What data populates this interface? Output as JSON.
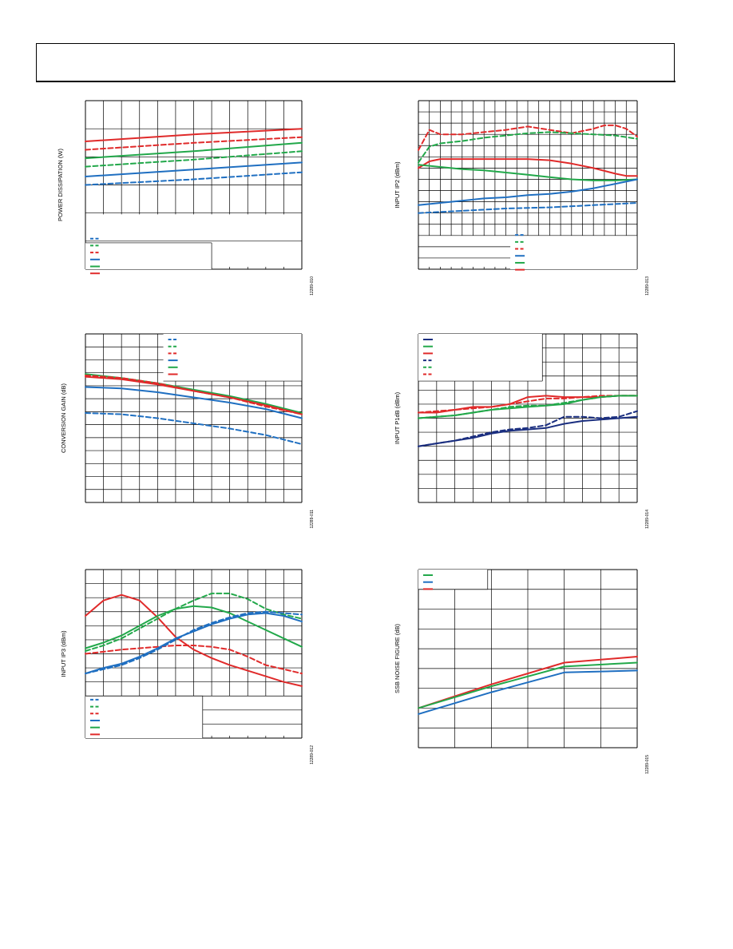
{
  "page": {
    "header_title": ""
  },
  "charts": [
    {
      "id": "power",
      "ylabel": "POWER DISSIPATION (W)",
      "fig": "12289-010",
      "xlim": [
        0,
        12
      ],
      "ylim": [
        0,
        6
      ],
      "xdiv": 12,
      "ydiv": 6,
      "grid_region": [
        0,
        1,
        1.95,
        6
      ],
      "legend": {
        "position": "bottom-left",
        "box_right_x": 7,
        "box_top_y": 0.94,
        "entries": [
          {
            "color": "#1f6fc1",
            "dash": true
          },
          {
            "color": "#22a84a",
            "dash": true
          },
          {
            "color": "#e02a2a",
            "dash": true
          },
          {
            "color": "#1f6fc1",
            "dash": false
          },
          {
            "color": "#22a84a",
            "dash": false
          },
          {
            "color": "#e02a2a",
            "dash": false
          }
        ]
      },
      "series": [
        {
          "color": "#e02a2a",
          "dash": false,
          "x": [
            0,
            6,
            12
          ],
          "y": [
            4.55,
            4.8,
            5.0
          ]
        },
        {
          "color": "#e02a2a",
          "dash": true,
          "x": [
            0,
            6,
            12
          ],
          "y": [
            4.25,
            4.5,
            4.7
          ]
        },
        {
          "color": "#22a84a",
          "dash": false,
          "x": [
            0,
            6,
            12
          ],
          "y": [
            3.95,
            4.2,
            4.5
          ]
        },
        {
          "color": "#22a84a",
          "dash": true,
          "x": [
            0,
            6,
            12
          ],
          "y": [
            3.65,
            3.9,
            4.2
          ]
        },
        {
          "color": "#1f6fc1",
          "dash": false,
          "x": [
            0,
            6,
            12
          ],
          "y": [
            3.3,
            3.55,
            3.8
          ]
        },
        {
          "color": "#1f6fc1",
          "dash": true,
          "x": [
            0,
            6,
            12
          ],
          "y": [
            3.0,
            3.2,
            3.45
          ]
        }
      ]
    },
    {
      "id": "ip2",
      "ylabel": "INPUT IP2 (dBm)",
      "fig": "12289-013",
      "xlim": [
        0,
        20
      ],
      "ylim": [
        0,
        15
      ],
      "xdiv": 20,
      "ydiv": 15,
      "grid_region": [
        0,
        1,
        3,
        15
      ],
      "legend": {
        "position": "bottom-center",
        "box_right_x": 20,
        "box_top_y": 3,
        "entries": [
          {
            "color": "#1f6fc1",
            "dash": true
          },
          {
            "color": "#22a84a",
            "dash": true
          },
          {
            "color": "#e02a2a",
            "dash": true
          },
          {
            "color": "#1f6fc1",
            "dash": false
          },
          {
            "color": "#22a84a",
            "dash": false
          },
          {
            "color": "#e02a2a",
            "dash": false
          }
        ]
      },
      "series": [
        {
          "color": "#e02a2a",
          "dash": true,
          "x": [
            0,
            1,
            2,
            4,
            6,
            8,
            10,
            12,
            14,
            16,
            17,
            18,
            19,
            20
          ],
          "y": [
            10.6,
            12.4,
            12.0,
            12.0,
            12.2,
            12.4,
            12.7,
            12.4,
            12.1,
            12.5,
            12.8,
            12.8,
            12.5,
            11.8
          ]
        },
        {
          "color": "#22a84a",
          "dash": true,
          "x": [
            0,
            1,
            2,
            4,
            6,
            8,
            10,
            12,
            14,
            16,
            18,
            20
          ],
          "y": [
            9.5,
            10.9,
            11.2,
            11.4,
            11.7,
            11.9,
            12.1,
            12.2,
            12.1,
            12.0,
            11.9,
            11.6
          ]
        },
        {
          "color": "#e02a2a",
          "dash": false,
          "x": [
            0,
            1,
            2,
            4,
            6,
            8,
            10,
            12,
            14,
            16,
            18,
            19,
            20
          ],
          "y": [
            9.0,
            9.6,
            9.8,
            9.8,
            9.8,
            9.8,
            9.8,
            9.7,
            9.4,
            9.0,
            8.5,
            8.3,
            8.3
          ]
        },
        {
          "color": "#22a84a",
          "dash": false,
          "x": [
            0,
            1,
            2,
            4,
            6,
            8,
            10,
            12,
            14,
            16,
            18,
            20
          ],
          "y": [
            9.3,
            9.2,
            9.1,
            8.9,
            8.8,
            8.6,
            8.4,
            8.2,
            8.0,
            7.9,
            7.9,
            8.0
          ]
        },
        {
          "color": "#1f6fc1",
          "dash": false,
          "x": [
            0,
            2,
            4,
            6,
            8,
            10,
            12,
            14,
            16,
            18,
            20
          ],
          "y": [
            5.7,
            5.9,
            6.1,
            6.3,
            6.4,
            6.6,
            6.7,
            6.9,
            7.2,
            7.6,
            8.0
          ]
        },
        {
          "color": "#1f6fc1",
          "dash": true,
          "x": [
            0,
            4,
            8,
            12,
            16,
            20
          ],
          "y": [
            5.0,
            5.2,
            5.4,
            5.5,
            5.7,
            5.9
          ]
        }
      ]
    },
    {
      "id": "gain",
      "ylabel": "CONVERSION GAIN (dB)",
      "fig": "12289-011",
      "xlim": [
        0,
        12
      ],
      "ylim": [
        0,
        13
      ],
      "xdiv": 12,
      "ydiv": 13,
      "grid_region": [
        0,
        1,
        0,
        13
      ],
      "legend": {
        "position": "top-right",
        "box_right_x": 12,
        "box_top_y": 13,
        "entries": [
          {
            "color": "#1f6fc1",
            "dash": true
          },
          {
            "color": "#22a84a",
            "dash": true
          },
          {
            "color": "#e02a2a",
            "dash": true
          },
          {
            "color": "#1f6fc1",
            "dash": false
          },
          {
            "color": "#22a84a",
            "dash": false
          },
          {
            "color": "#e02a2a",
            "dash": false
          }
        ]
      },
      "series": [
        {
          "color": "#22a84a",
          "dash": false,
          "x": [
            0,
            2,
            4,
            6,
            8,
            10,
            12
          ],
          "y": [
            9.9,
            9.6,
            9.2,
            8.7,
            8.2,
            7.6,
            6.9
          ]
        },
        {
          "color": "#e02a2a",
          "dash": true,
          "x": [
            0,
            2,
            4,
            6,
            8,
            10,
            12
          ],
          "y": [
            9.8,
            9.6,
            9.2,
            8.6,
            8.1,
            7.4,
            6.8
          ]
        },
        {
          "color": "#e02a2a",
          "dash": false,
          "x": [
            0,
            2,
            4,
            6,
            8,
            10,
            12
          ],
          "y": [
            9.7,
            9.5,
            9.1,
            8.6,
            8.1,
            7.5,
            6.8
          ]
        },
        {
          "color": "#1f6fc1",
          "dash": false,
          "x": [
            0,
            2,
            4,
            6,
            8,
            10,
            12
          ],
          "y": [
            8.9,
            8.8,
            8.5,
            8.1,
            7.7,
            7.2,
            6.5
          ]
        },
        {
          "color": "#1f6fc1",
          "dash": true,
          "x": [
            0,
            2,
            4,
            6,
            8,
            10,
            12
          ],
          "y": [
            6.9,
            6.8,
            6.5,
            6.1,
            5.7,
            5.2,
            4.5
          ]
        }
      ]
    },
    {
      "id": "p1db",
      "ylabel": "INPUT P1dB (dBm)",
      "fig": "12289-014",
      "xlim": [
        0,
        12
      ],
      "ylim": [
        0,
        12
      ],
      "xdiv": 12,
      "ydiv": 12,
      "grid_region": [
        0,
        1,
        0,
        12
      ],
      "legend": {
        "position": "top-left",
        "box_right_x": 6.8,
        "box_top_y": 12,
        "entries": [
          {
            "color": "#1b2f80",
            "dash": false
          },
          {
            "color": "#22a84a",
            "dash": false
          },
          {
            "color": "#e02a2a",
            "dash": false
          },
          {
            "color": "#1b2f80",
            "dash": true
          },
          {
            "color": "#22a84a",
            "dash": true
          },
          {
            "color": "#e02a2a",
            "dash": true
          }
        ]
      },
      "series": [
        {
          "color": "#e02a2a",
          "dash": true,
          "x": [
            0,
            1,
            2,
            3,
            4,
            5,
            6,
            7,
            8,
            9,
            10,
            11,
            12
          ],
          "y": [
            6.4,
            6.5,
            6.6,
            6.7,
            6.8,
            7.0,
            7.2,
            7.4,
            7.4,
            7.5,
            7.6,
            7.6,
            7.6
          ]
        },
        {
          "color": "#e02a2a",
          "dash": false,
          "x": [
            0,
            1,
            2,
            3,
            4,
            5,
            6,
            7,
            8,
            9,
            10,
            11,
            12
          ],
          "y": [
            6.4,
            6.4,
            6.6,
            6.8,
            6.8,
            7.0,
            7.5,
            7.6,
            7.5,
            7.5,
            7.5,
            7.6,
            7.6
          ]
        },
        {
          "color": "#22a84a",
          "dash": true,
          "x": [
            0,
            1,
            2,
            3,
            4,
            5,
            6,
            7,
            8,
            9,
            10,
            11,
            12
          ],
          "y": [
            6.0,
            6.1,
            6.2,
            6.4,
            6.6,
            6.8,
            6.9,
            6.9,
            7.1,
            7.3,
            7.5,
            7.6,
            7.6
          ]
        },
        {
          "color": "#22a84a",
          "dash": false,
          "x": [
            0,
            1,
            2,
            3,
            4,
            5,
            6,
            7,
            8,
            9,
            10,
            11,
            12
          ],
          "y": [
            6.0,
            6.1,
            6.2,
            6.4,
            6.6,
            6.7,
            6.8,
            6.9,
            7.0,
            7.3,
            7.5,
            7.6,
            7.6
          ]
        },
        {
          "color": "#1b2f80",
          "dash": true,
          "x": [
            0,
            1,
            2,
            3,
            4,
            5,
            6,
            7,
            8,
            9,
            10,
            11,
            12
          ],
          "y": [
            4.0,
            4.2,
            4.4,
            4.7,
            5.0,
            5.2,
            5.3,
            5.5,
            6.1,
            6.1,
            6.0,
            6.1,
            6.5
          ]
        },
        {
          "color": "#1b2f80",
          "dash": false,
          "x": [
            0,
            1,
            2,
            3,
            4,
            5,
            6,
            7,
            8,
            9,
            10,
            11,
            12
          ],
          "y": [
            4.0,
            4.2,
            4.4,
            4.6,
            4.9,
            5.1,
            5.2,
            5.3,
            5.6,
            5.8,
            5.9,
            6.0,
            6.1
          ]
        }
      ]
    },
    {
      "id": "ip3",
      "ylabel": "INPUT IP3 (dBm)",
      "fig": "12289-012",
      "xlim": [
        0,
        12
      ],
      "ylim": [
        0,
        12
      ],
      "xdiv": 12,
      "ydiv": 12,
      "grid_region": [
        0,
        1,
        3,
        12
      ],
      "legend": {
        "position": "bottom-left",
        "box_right_x": 6.5,
        "box_top_y": 3,
        "entries": [
          {
            "color": "#1f6fc1",
            "dash": true
          },
          {
            "color": "#22a84a",
            "dash": true
          },
          {
            "color": "#e02a2a",
            "dash": true
          },
          {
            "color": "#1f6fc1",
            "dash": false
          },
          {
            "color": "#22a84a",
            "dash": false
          },
          {
            "color": "#e02a2a",
            "dash": false
          }
        ]
      },
      "series": [
        {
          "color": "#e02a2a",
          "dash": false,
          "x": [
            0,
            1,
            2,
            3,
            4,
            5,
            6,
            7,
            8,
            9,
            10,
            11,
            12
          ],
          "y": [
            8.7,
            9.8,
            10.2,
            9.8,
            8.6,
            7.2,
            6.3,
            5.7,
            5.2,
            4.8,
            4.4,
            4.0,
            3.7
          ]
        },
        {
          "color": "#e02a2a",
          "dash": true,
          "x": [
            0,
            2,
            4,
            5,
            6,
            7,
            8,
            9,
            10,
            11,
            12
          ],
          "y": [
            6.0,
            6.3,
            6.5,
            6.6,
            6.6,
            6.5,
            6.3,
            5.8,
            5.2,
            4.9,
            4.6
          ]
        },
        {
          "color": "#22a84a",
          "dash": true,
          "x": [
            0,
            1,
            2,
            3,
            4,
            5,
            6,
            7,
            8,
            9,
            10,
            11,
            12
          ],
          "y": [
            6.2,
            6.6,
            7.1,
            7.8,
            8.5,
            9.2,
            9.8,
            10.3,
            10.3,
            9.9,
            9.2,
            8.8,
            8.5
          ]
        },
        {
          "color": "#22a84a",
          "dash": false,
          "x": [
            0,
            1,
            2,
            3,
            4,
            5,
            6,
            7,
            8,
            9,
            10,
            11,
            12
          ],
          "y": [
            6.4,
            6.8,
            7.3,
            8.0,
            8.7,
            9.2,
            9.4,
            9.3,
            8.9,
            8.3,
            7.7,
            7.1,
            6.5
          ]
        },
        {
          "color": "#1f6fc1",
          "dash": true,
          "x": [
            0,
            1,
            2,
            3,
            4,
            5,
            6,
            7,
            8,
            9,
            10,
            11,
            12
          ],
          "y": [
            4.6,
            4.9,
            5.2,
            5.7,
            6.3,
            7.0,
            7.7,
            8.2,
            8.6,
            8.9,
            9.0,
            8.9,
            8.8
          ]
        },
        {
          "color": "#1f6fc1",
          "dash": false,
          "x": [
            0,
            1,
            2,
            3,
            4,
            5,
            6,
            7,
            8,
            9,
            10,
            11,
            12
          ],
          "y": [
            4.6,
            5.0,
            5.3,
            5.8,
            6.4,
            7.1,
            7.6,
            8.1,
            8.5,
            8.8,
            8.9,
            8.7,
            8.3
          ]
        }
      ]
    },
    {
      "id": "nf",
      "ylabel": "SSB NOISE FIGURE (dB)",
      "fig": "12289-015",
      "xlim": [
        0,
        6
      ],
      "ylim": [
        0,
        9
      ],
      "xdiv": 6,
      "ydiv": 9,
      "grid_region": [
        0,
        1,
        0,
        9
      ],
      "legend": {
        "position": "top-left",
        "box_right_x": 1.9,
        "box_top_y": 9,
        "box_bottom_y": 8,
        "entries": [
          {
            "color": "#22a84a",
            "dash": false
          },
          {
            "color": "#1f6fc1",
            "dash": false
          },
          {
            "color": "#e02a2a",
            "dash": false
          }
        ]
      },
      "series": [
        {
          "color": "#e02a2a",
          "dash": false,
          "x": [
            0,
            2,
            4,
            6
          ],
          "y": [
            2.0,
            3.2,
            4.3,
            4.6
          ]
        },
        {
          "color": "#22a84a",
          "dash": false,
          "x": [
            0,
            2,
            4,
            6
          ],
          "y": [
            2.0,
            3.1,
            4.1,
            4.3
          ]
        },
        {
          "color": "#1f6fc1",
          "dash": false,
          "x": [
            0,
            2,
            4,
            6
          ],
          "y": [
            1.7,
            2.8,
            3.8,
            3.9
          ]
        }
      ]
    }
  ]
}
